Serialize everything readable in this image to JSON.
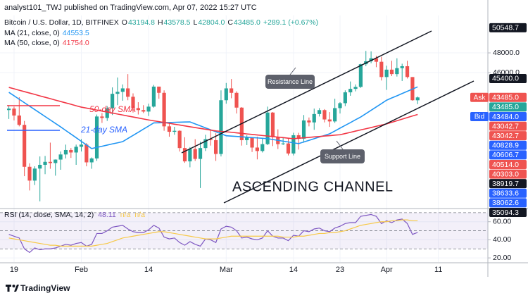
{
  "header": {
    "publisher": "analyst101_TWJ published on TradingView.com, Apr 07, 2022 15:27 UTC"
  },
  "chart_data": [
    {
      "type": "candlestick",
      "title": "Bitcoin / U.S. Dollar, 1D, BITFINEX",
      "ohlc_legend": [
        {
          "label": "O",
          "value": "43194.8"
        },
        {
          "label": "H",
          "value": "43578.5"
        },
        {
          "label": "L",
          "value": "42804.0"
        },
        {
          "label": "C",
          "value": "43485.0"
        }
      ],
      "change": "+289.1 (+0.67%)",
      "up_color": "#26a69a",
      "down_color": "#ef5350",
      "categories": [
        null,
        "19",
        null,
        null,
        null,
        null,
        null,
        null,
        null,
        null,
        null,
        null,
        null,
        null,
        "Feb",
        null,
        null,
        null,
        null,
        null,
        null,
        null,
        null,
        null,
        null,
        null,
        null,
        "14",
        null,
        null,
        null,
        null,
        null,
        null,
        null,
        null,
        null,
        null,
        null,
        null,
        null,
        null,
        "Mar",
        null,
        null,
        null,
        null,
        null,
        null,
        null,
        null,
        null,
        null,
        null,
        null,
        "14",
        null,
        null,
        null,
        null,
        null,
        null,
        null,
        null,
        "23",
        null,
        null,
        null,
        null,
        null,
        null,
        null,
        null,
        "Apr",
        null,
        null,
        null,
        null,
        null,
        null,
        null,
        null,
        null,
        "11",
        null,
        null,
        null,
        null,
        null,
        null,
        null
      ],
      "candles": [
        [
          42200,
          42700,
          41300,
          42350
        ],
        [
          42350,
          42550,
          41150,
          41650
        ],
        [
          41650,
          43500,
          40550,
          40700
        ],
        [
          40700,
          41100,
          35500,
          36450
        ],
        [
          36450,
          36800,
          34050,
          35050
        ],
        [
          35050,
          36500,
          34600,
          36270
        ],
        [
          36270,
          37500,
          32950,
          36650
        ],
        [
          36650,
          37550,
          35700,
          36950
        ],
        [
          36950,
          38900,
          36250,
          36830
        ],
        [
          36830,
          37200,
          35550,
          37180
        ],
        [
          37180,
          38000,
          36150,
          37700
        ],
        [
          37700,
          38700,
          37300,
          38150
        ],
        [
          38150,
          38350,
          37350,
          37900
        ],
        [
          37900,
          38700,
          36650,
          38480
        ],
        [
          38480,
          39250,
          38000,
          38700
        ],
        [
          38700,
          38850,
          36500,
          36900
        ],
        [
          36900,
          37400,
          36250,
          37300
        ],
        [
          37300,
          41750,
          37050,
          41550
        ],
        [
          41550,
          41900,
          40900,
          41400
        ],
        [
          41400,
          42600,
          41100,
          42380
        ],
        [
          42380,
          44500,
          41700,
          43850
        ],
        [
          43850,
          45500,
          42700,
          44050
        ],
        [
          44050,
          44800,
          43150,
          44400
        ],
        [
          44400,
          45850,
          43200,
          43550
        ],
        [
          43550,
          43900,
          41950,
          42400
        ],
        [
          42400,
          43000,
          41750,
          42200
        ],
        [
          42200,
          42700,
          41900,
          42050
        ],
        [
          42050,
          42850,
          41600,
          42550
        ],
        [
          42550,
          44750,
          42450,
          44580
        ],
        [
          44580,
          44580,
          43350,
          43950
        ],
        [
          43950,
          44200,
          40100,
          40550
        ],
        [
          40550,
          40950,
          39500,
          40000
        ],
        [
          40000,
          40500,
          39700,
          40100
        ],
        [
          40100,
          40150,
          38000,
          38350
        ],
        [
          38350,
          39450,
          36850,
          37000
        ],
        [
          37000,
          38450,
          36400,
          38250
        ],
        [
          38250,
          39250,
          37050,
          37250
        ],
        [
          37250,
          39000,
          34300,
          38350
        ],
        [
          38350,
          39700,
          38050,
          39250
        ],
        [
          39250,
          40200,
          38600,
          39150
        ],
        [
          39150,
          39850,
          37050,
          37750
        ],
        [
          37750,
          44200,
          37500,
          43200
        ],
        [
          43200,
          44950,
          42850,
          44400
        ],
        [
          44400,
          45350,
          43400,
          43950
        ],
        [
          43950,
          44100,
          41850,
          42450
        ],
        [
          42450,
          42500,
          38600,
          39150
        ],
        [
          39150,
          39650,
          38650,
          39400
        ],
        [
          39400,
          39450,
          37950,
          38400
        ],
        [
          38400,
          39500,
          37200,
          38050
        ],
        [
          38050,
          39350,
          37900,
          38750
        ],
        [
          38750,
          42550,
          38650,
          41950
        ],
        [
          41950,
          42000,
          38550,
          39450
        ],
        [
          39450,
          40250,
          38250,
          38750
        ],
        [
          38750,
          39400,
          38650,
          38820
        ],
        [
          38820,
          39300,
          37600,
          37800
        ],
        [
          37800,
          39900,
          37600,
          39650
        ],
        [
          39650,
          39900,
          38200,
          39300
        ],
        [
          39300,
          41700,
          38900,
          41150
        ],
        [
          41150,
          41450,
          40550,
          40950
        ],
        [
          40950,
          42350,
          40200,
          41800
        ],
        [
          41800,
          42400,
          41550,
          42200
        ],
        [
          42200,
          42300,
          40950,
          41250
        ],
        [
          41250,
          42000,
          40500,
          41050
        ],
        [
          41050,
          43350,
          40900,
          42400
        ],
        [
          42400,
          43000,
          41850,
          42900
        ],
        [
          42900,
          44200,
          42600,
          44000
        ],
        [
          44000,
          45100,
          43650,
          44350
        ],
        [
          44350,
          44800,
          44100,
          44550
        ],
        [
          44550,
          46900,
          44450,
          46850
        ],
        [
          46850,
          48200,
          46650,
          47150
        ],
        [
          47150,
          48150,
          46950,
          47450
        ],
        [
          47450,
          47700,
          46550,
          47100
        ],
        [
          47100,
          47600,
          45200,
          45550
        ],
        [
          45550,
          46700,
          44250,
          46300
        ],
        [
          46300,
          47200,
          45650,
          45850
        ],
        [
          45850,
          47450,
          45600,
          46450
        ],
        [
          46450,
          46900,
          45150,
          46650
        ],
        [
          46650,
          47200,
          45400,
          45550
        ],
        [
          45550,
          45550,
          43150,
          43200
        ],
        [
          43194.8,
          43578.5,
          42804.0,
          43485.0
        ],
        null,
        null,
        null,
        null,
        null,
        null,
        null,
        null,
        null,
        null,
        null
      ],
      "series": [
        {
          "name": "MA (21, close, 0)",
          "legend_value": "44553.5",
          "color": "#2196f3",
          "values": [
            44000,
            43650,
            43300,
            42950,
            42600,
            42250,
            41900,
            41550,
            41200,
            40850,
            40500,
            40130,
            39770,
            39400,
            39030,
            38670,
            38300,
            38420,
            38530,
            38650,
            38770,
            38880,
            39000,
            39320,
            39630,
            39950,
            40270,
            40580,
            40900,
            40910,
            40930,
            40940,
            40960,
            40970,
            40990,
            41000,
            40800,
            40600,
            40400,
            40200,
            40000,
            39800,
            39600,
            39560,
            39530,
            39490,
            39450,
            39410,
            39380,
            39340,
            39300,
            39220,
            39130,
            39050,
            38970,
            38880,
            38800,
            38970,
            39130,
            39300,
            39470,
            39630,
            39800,
            40080,
            40370,
            40650,
            40930,
            41220,
            41500,
            41840,
            42180,
            42520,
            42860,
            43200,
            43430,
            43650,
            43880,
            44100,
            44330,
            44553.5,
            null,
            null,
            null,
            null,
            null,
            null,
            null,
            null,
            null,
            null,
            null
          ]
        },
        {
          "name": "MA (50, close, 0)",
          "legend_value": "41754.0",
          "color": "#f23645",
          "values": [
            44500,
            44360,
            44210,
            44070,
            43930,
            43790,
            43640,
            43500,
            43360,
            43210,
            43070,
            42930,
            42790,
            42640,
            42500,
            42400,
            42300,
            42200,
            42100,
            42000,
            41900,
            41800,
            41700,
            41600,
            41500,
            41400,
            41300,
            41200,
            41110,
            41030,
            40940,
            40860,
            40770,
            40690,
            40600,
            40510,
            40430,
            40340,
            40260,
            40170,
            40090,
            40040,
            40000,
            39950,
            39890,
            39840,
            39780,
            39730,
            39680,
            39620,
            39570,
            39520,
            39460,
            39410,
            39350,
            39300,
            39340,
            39390,
            39430,
            39480,
            39520,
            39570,
            39610,
            39660,
            39700,
            39820,
            39940,
            40070,
            40190,
            40310,
            40430,
            40560,
            40680,
            40800,
            40960,
            41120,
            41280,
            41440,
            41600,
            41754,
            null,
            null,
            null,
            null,
            null,
            null,
            null,
            null,
            null,
            null,
            null
          ]
        }
      ],
      "ylim": [
        32290,
        51790
      ],
      "yticks": [
        {
          "value": 48000,
          "label": "48000.0"
        },
        {
          "value": 46000,
          "label": "46000.0"
        }
      ],
      "price_labels": [
        {
          "value": 50548.7,
          "label": "50548.7",
          "color": "#131722"
        },
        {
          "value": 45400.0,
          "label": "45400.0",
          "color": "#131722"
        },
        {
          "value": 43485.0,
          "label": "43485.0",
          "tag": "Ask",
          "color": "#ef5350"
        },
        {
          "value": 43485.0,
          "label": "43485.0",
          "color": "#26a69a"
        },
        {
          "value": 43484.0,
          "label": "43484.0",
          "tag": "Bid",
          "color": "#2962ff"
        },
        {
          "value": 43042.7,
          "label": "43042.7",
          "color": "#ef5350"
        },
        {
          "value": 43042.7,
          "label": "43042.7",
          "color": "#ef5350"
        },
        {
          "value": 40828.9,
          "label": "40828.9",
          "color": "#2962ff"
        },
        {
          "value": 40606.7,
          "label": "40606.7",
          "color": "#2962ff"
        },
        {
          "value": 40514.0,
          "label": "40514.0",
          "color": "#ef5350"
        },
        {
          "value": 40303.0,
          "label": "40303.0",
          "color": "#ef5350"
        },
        {
          "value": 38919.7,
          "label": "38919.7",
          "color": "#131722"
        },
        {
          "value": 38633.6,
          "label": "38633.6",
          "color": "#2962ff"
        },
        {
          "value": 38062.6,
          "label": "38062.6",
          "color": "#2962ff"
        },
        {
          "value": 35094.3,
          "label": "35094.3",
          "color": "#131722"
        }
      ],
      "annotations": {
        "resistance": "Resistance Line",
        "support": "Support Line",
        "channel": "ASCENDING CHANNEL",
        "sma50": "50-day SMA",
        "sma21": "21-day SMA"
      },
      "grid": true
    },
    {
      "type": "line",
      "title": "RSI (14, close, SMA, 14, 2)",
      "legend_extra": [
        "n/a",
        "n/a"
      ],
      "series": [
        {
          "color": "#7e57c2",
          "values": [
            46,
            44,
            42,
            30,
            26,
            31,
            29,
            30,
            30,
            31,
            33,
            35,
            34,
            36,
            37,
            33,
            35,
            47,
            47,
            50,
            54,
            55,
            56,
            52,
            49,
            48,
            48,
            51,
            56,
            53,
            43,
            41,
            42,
            37,
            34,
            38,
            35,
            33,
            41,
            40,
            37,
            52,
            55,
            54,
            50,
            42,
            43,
            41,
            40,
            42,
            50,
            44,
            42,
            42,
            39,
            45,
            44,
            50,
            49,
            52,
            53,
            50,
            49,
            53,
            55,
            58,
            59,
            59,
            66,
            67,
            68,
            66,
            58,
            61,
            59,
            62,
            63,
            58,
            46,
            48.11,
            null,
            null,
            null,
            null,
            null,
            null,
            null,
            null,
            null,
            null,
            null
          ]
        },
        {
          "color": "#f7c948",
          "values": [
            42,
            41,
            40,
            39,
            38,
            37,
            36,
            35,
            34,
            34,
            33,
            33,
            33,
            33,
            33,
            33,
            33,
            34,
            35,
            36,
            38,
            40,
            42,
            43,
            44,
            45,
            46,
            47,
            48,
            49,
            49,
            48,
            47,
            46,
            45,
            44,
            43,
            42,
            41,
            41,
            41,
            42,
            43,
            44,
            44,
            44,
            44,
            44,
            44,
            44,
            44,
            44,
            44,
            43,
            43,
            43,
            44,
            44,
            45,
            46,
            47,
            47,
            48,
            48,
            49,
            50,
            52,
            54,
            56,
            57,
            58,
            59,
            60,
            60,
            61,
            61,
            62,
            62,
            61,
            61,
            null,
            null,
            null,
            null,
            null,
            null,
            null,
            null,
            null,
            null,
            null
          ]
        }
      ],
      "levels": [
        70,
        50,
        30
      ],
      "band_color": "#7e57c2",
      "ylim": [
        15.4,
        73.8
      ],
      "yticks": [
        {
          "value": 60,
          "label": "60.00"
        },
        {
          "value": 40,
          "label": "40.00"
        },
        {
          "value": 20,
          "label": "20.00"
        }
      ]
    }
  ],
  "footer": {
    "brand": "TradingView"
  }
}
